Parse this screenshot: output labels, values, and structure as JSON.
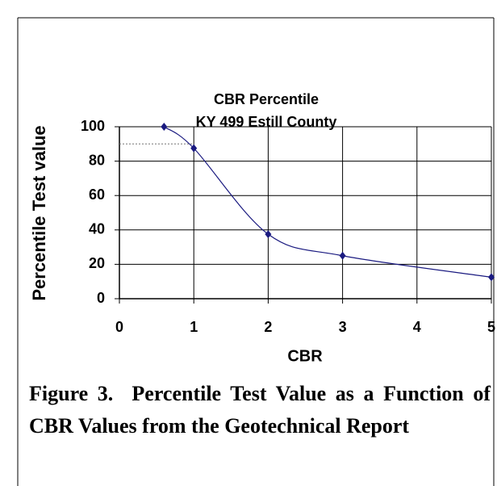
{
  "chart_data": {
    "type": "scatter",
    "title": "CBR Percentile",
    "subtitle": "KY 499 Estill County",
    "x_label": "CBR",
    "y_label": "Percentile Test value",
    "series": [
      {
        "name": "Percentile",
        "color": "#1a1a80",
        "x": [
          0.6,
          1,
          2,
          3,
          5
        ],
        "values": [
          100,
          87.5,
          37.5,
          25,
          12.5
        ]
      }
    ],
    "reference_line": {
      "y": 90,
      "x": [
        0,
        1
      ]
    },
    "xlim": [
      0,
      5
    ],
    "xticks": [
      0,
      1,
      2,
      3,
      4,
      5
    ],
    "ylim": [
      0,
      100
    ],
    "yticks": [
      0,
      20,
      40,
      60,
      80,
      100
    ],
    "grid": true,
    "caption": "Figure 3.  Percentile Test Value as a Function of CBR Values from the Geotechnical Report"
  }
}
